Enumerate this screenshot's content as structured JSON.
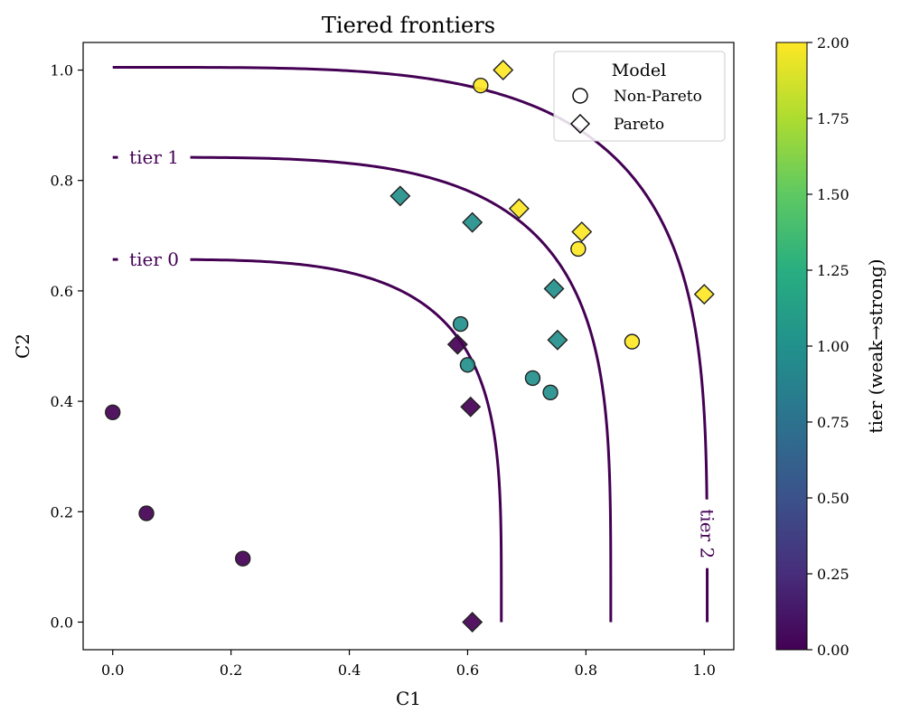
{
  "chart_data": {
    "type": "scatter",
    "title": "Tiered frontiers",
    "xlabel": "C1",
    "ylabel": "C2",
    "xlim": [
      -0.05,
      1.05
    ],
    "ylim": [
      -0.05,
      1.05
    ],
    "xticks": [
      0.0,
      0.2,
      0.4,
      0.6,
      0.8,
      1.0
    ],
    "yticks": [
      0.0,
      0.2,
      0.4,
      0.6,
      0.8,
      1.0
    ],
    "xtick_labels": [
      "0.0",
      "0.2",
      "0.4",
      "0.6",
      "0.8",
      "1.0"
    ],
    "ytick_labels": [
      "0.0",
      "0.2",
      "0.4",
      "0.6",
      "0.8",
      "1.0"
    ],
    "legend": {
      "title": "Model",
      "position": "top-right",
      "entries": [
        {
          "label": "Non-Pareto",
          "marker": "circle"
        },
        {
          "label": "Pareto",
          "marker": "diamond"
        }
      ]
    },
    "colorbar": {
      "label": "tier (weak→strong)",
      "range": [
        0.0,
        2.0
      ],
      "ticks": [
        0.0,
        0.25,
        0.5,
        0.75,
        1.0,
        1.25,
        1.5,
        1.75,
        2.0
      ],
      "tick_labels": [
        "0.00",
        "0.25",
        "0.50",
        "0.75",
        "1.00",
        "1.25",
        "1.50",
        "1.75",
        "2.00"
      ],
      "colormap": "viridis"
    },
    "frontiers": [
      {
        "label": "tier 0",
        "radius": 0.657
      },
      {
        "label": "tier 1",
        "radius": 0.842
      },
      {
        "label": "tier 2",
        "radius": 1.005
      }
    ],
    "points": [
      {
        "x": 0.0,
        "y": 0.38,
        "tier": 0,
        "marker": "circle"
      },
      {
        "x": 0.057,
        "y": 0.197,
        "tier": 0,
        "marker": "circle"
      },
      {
        "x": 0.22,
        "y": 0.115,
        "tier": 0,
        "marker": "circle"
      },
      {
        "x": 0.608,
        "y": 0.0,
        "tier": 0,
        "marker": "diamond"
      },
      {
        "x": 0.605,
        "y": 0.39,
        "tier": 0,
        "marker": "diamond"
      },
      {
        "x": 0.583,
        "y": 0.503,
        "tier": 0,
        "marker": "diamond"
      },
      {
        "x": 0.588,
        "y": 0.54,
        "tier": 1,
        "marker": "circle"
      },
      {
        "x": 0.6,
        "y": 0.466,
        "tier": 1,
        "marker": "circle"
      },
      {
        "x": 0.71,
        "y": 0.442,
        "tier": 1,
        "marker": "circle"
      },
      {
        "x": 0.74,
        "y": 0.416,
        "tier": 1,
        "marker": "circle"
      },
      {
        "x": 0.486,
        "y": 0.772,
        "tier": 1,
        "marker": "diamond"
      },
      {
        "x": 0.608,
        "y": 0.724,
        "tier": 1,
        "marker": "diamond"
      },
      {
        "x": 0.746,
        "y": 0.604,
        "tier": 1,
        "marker": "diamond"
      },
      {
        "x": 0.752,
        "y": 0.511,
        "tier": 1,
        "marker": "diamond"
      },
      {
        "x": 0.622,
        "y": 0.972,
        "tier": 2,
        "marker": "circle"
      },
      {
        "x": 0.787,
        "y": 0.676,
        "tier": 2,
        "marker": "circle"
      },
      {
        "x": 0.878,
        "y": 0.508,
        "tier": 2,
        "marker": "circle"
      },
      {
        "x": 0.66,
        "y": 1.0,
        "tier": 2,
        "marker": "diamond"
      },
      {
        "x": 0.687,
        "y": 0.749,
        "tier": 2,
        "marker": "diamond"
      },
      {
        "x": 0.793,
        "y": 0.707,
        "tier": 2,
        "marker": "diamond"
      },
      {
        "x": 1.0,
        "y": 0.594,
        "tier": 2,
        "marker": "diamond"
      }
    ],
    "colors": {
      "frontier_line": "#440154",
      "tier_0": "#440154",
      "tier_1": "#21908d",
      "tier_2": "#fde725",
      "marker_edge": "#222222"
    }
  }
}
